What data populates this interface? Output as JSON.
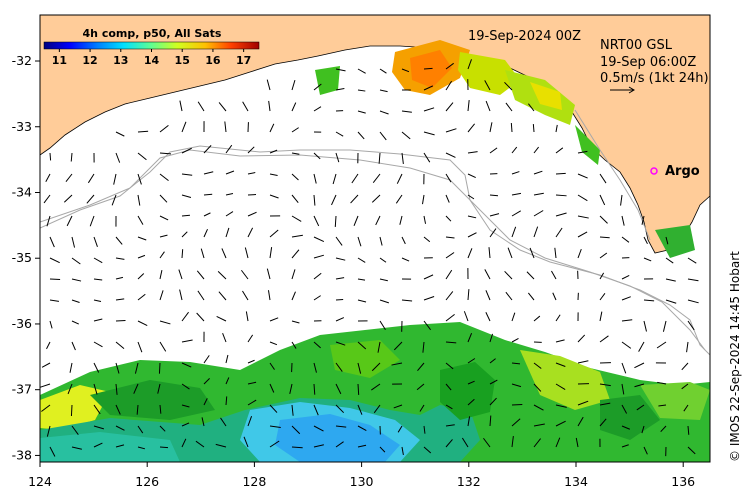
{
  "map": {
    "product_label": "4h comp, p50, All Sats",
    "date": "19-Sep-2024 00Z",
    "current_source": "NRT00 GSL",
    "current_time": "19-Sep 06:00Z",
    "vector_scale": "0.5m/s (1kt 24h)",
    "argo_label": "Argo",
    "credit": "© IMOS 22-Sep-2024 14:45 Hobart",
    "colorbar": {
      "ticks": [
        "11",
        "12",
        "13",
        "14",
        "15",
        "16",
        "17"
      ],
      "range": [
        10.5,
        17.5
      ],
      "colors": [
        "#00007f",
        "#0000ff",
        "#0080ff",
        "#00e0ff",
        "#60ff90",
        "#d0ff20",
        "#ffc000",
        "#ff4000",
        "#a00000"
      ]
    },
    "lon_ticks": [
      "124",
      "126",
      "128",
      "130",
      "132",
      "134",
      "136"
    ],
    "lon_values": [
      124,
      126,
      128,
      130,
      132,
      134,
      136
    ],
    "lon_range": [
      124.0,
      136.5
    ],
    "lat_ticks": [
      "-32",
      "-33",
      "-34",
      "-35",
      "-36",
      "-37",
      "-38"
    ],
    "lat_values": [
      -32,
      -33,
      -34,
      -35,
      -36,
      -37,
      -38
    ],
    "lat_range": [
      -31.3,
      -38.1
    ],
    "land_color": "#ffcc99"
  }
}
